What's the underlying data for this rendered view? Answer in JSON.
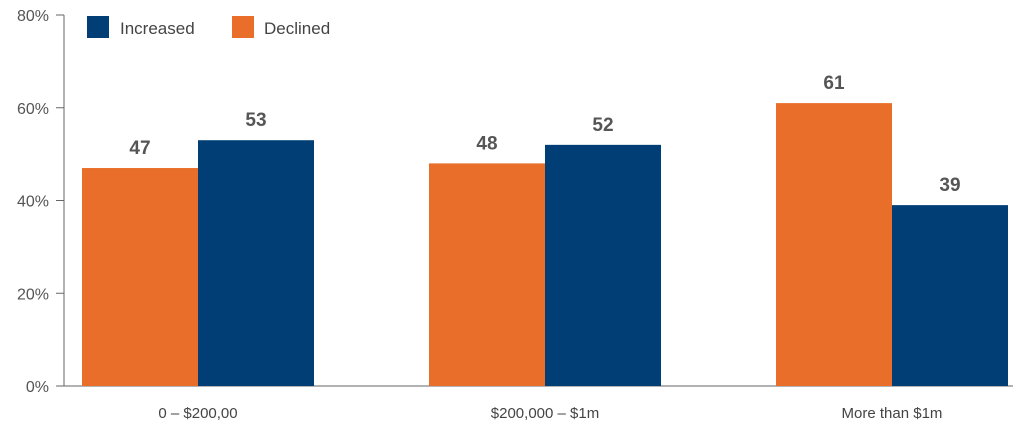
{
  "chart_data": {
    "type": "bar",
    "categories": [
      "0 – $200,00",
      "$200,000 – $1m",
      "More than $1m"
    ],
    "series": [
      {
        "name": "Declined",
        "values": [
          47,
          48,
          61
        ],
        "color": "#E96E29"
      },
      {
        "name": "Increased",
        "values": [
          53,
          52,
          39
        ],
        "color": "#003E75"
      }
    ],
    "legend": [
      "Increased",
      "Declined"
    ],
    "legend_position": "top-left",
    "y_ticks": [
      "0%",
      "20%",
      "40%",
      "60%",
      "80%"
    ],
    "ylim": [
      0,
      80
    ],
    "grid": false
  },
  "colors": {
    "increased": "#003E75",
    "declined": "#E96E29"
  }
}
